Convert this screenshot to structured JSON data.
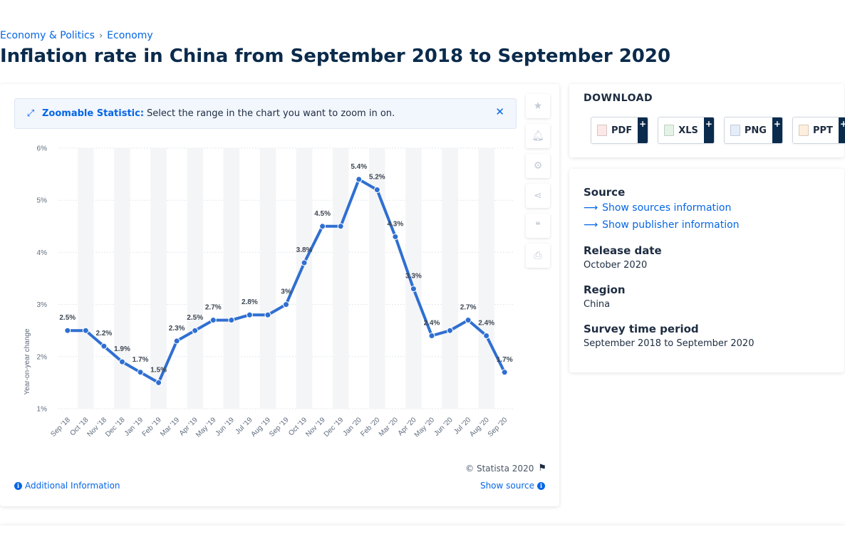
{
  "breadcrumb": {
    "items": [
      "Economy & Politics",
      "Economy"
    ],
    "separator": "›"
  },
  "page_title": "Inflation rate in China from September 2018 to September 2020",
  "zoom_banner": {
    "title": "Zoomable Statistic:",
    "text": "Select the range in the chart you want to zoom in on."
  },
  "tools": [
    "star-icon",
    "bell-icon",
    "gear-icon",
    "share-icon",
    "quote-icon",
    "print-icon"
  ],
  "footer": {
    "copyright": "© Statista 2020",
    "additional_info": "Additional Information",
    "show_source": "Show source"
  },
  "download": {
    "title": "DOWNLOAD",
    "buttons": [
      {
        "label": "PDF",
        "color": "#d9322f"
      },
      {
        "label": "XLS",
        "color": "#3aa14a"
      },
      {
        "label": "PNG",
        "color": "#2f6fd1"
      },
      {
        "label": "PPT",
        "color": "#e8792a"
      }
    ],
    "plus": "+"
  },
  "meta": {
    "source_heading": "Source",
    "sources_link": "Show sources information",
    "publisher_link": "Show publisher information",
    "release_heading": "Release date",
    "release_value": "October 2020",
    "region_heading": "Region",
    "region_value": "China",
    "survey_heading": "Survey time period",
    "survey_value": "September 2018 to September 2020"
  },
  "colors": {
    "accent": "#0666e5",
    "line": "#2f6fd1",
    "title": "#0b2b4c"
  },
  "chart_data": {
    "type": "line",
    "ylabel": "Year-on-year change",
    "ylim": [
      1,
      6
    ],
    "yticks": [
      "1%",
      "2%",
      "3%",
      "4%",
      "5%",
      "6%"
    ],
    "grid": true,
    "categories": [
      "Sep '18",
      "Oct '18",
      "Nov '18",
      "Dec '18",
      "Jan '19",
      "Feb '19",
      "Mar '19",
      "Apr '19",
      "May '19",
      "Jun '19",
      "Jul '19",
      "Aug '19",
      "Sep '19",
      "Oct '19",
      "Nov '19",
      "Dec '19",
      "Jan '20",
      "Feb '20",
      "Mar '20",
      "Apr '20",
      "May '20",
      "Jun '20",
      "Jul '20",
      "Aug '20",
      "Sep '20"
    ],
    "values": [
      2.5,
      2.5,
      2.2,
      1.9,
      1.7,
      1.5,
      2.3,
      2.5,
      2.7,
      2.7,
      2.8,
      2.8,
      3.0,
      3.8,
      4.5,
      4.5,
      5.4,
      5.2,
      4.3,
      3.3,
      2.4,
      2.5,
      2.7,
      2.4,
      1.7
    ],
    "labels": [
      "2.5%",
      "",
      "2.2%",
      "1.9%",
      "1.7%",
      "1.5%",
      "2.3%",
      "2.5%",
      "2.7%",
      "",
      "2.8%",
      "",
      "3%",
      "3.8%",
      "4.5%",
      "",
      "5.4%",
      "5.2%",
      "4.3%",
      "3.3%",
      "2.4%",
      "",
      "2.7%",
      "2.4%",
      "1.7%"
    ]
  }
}
